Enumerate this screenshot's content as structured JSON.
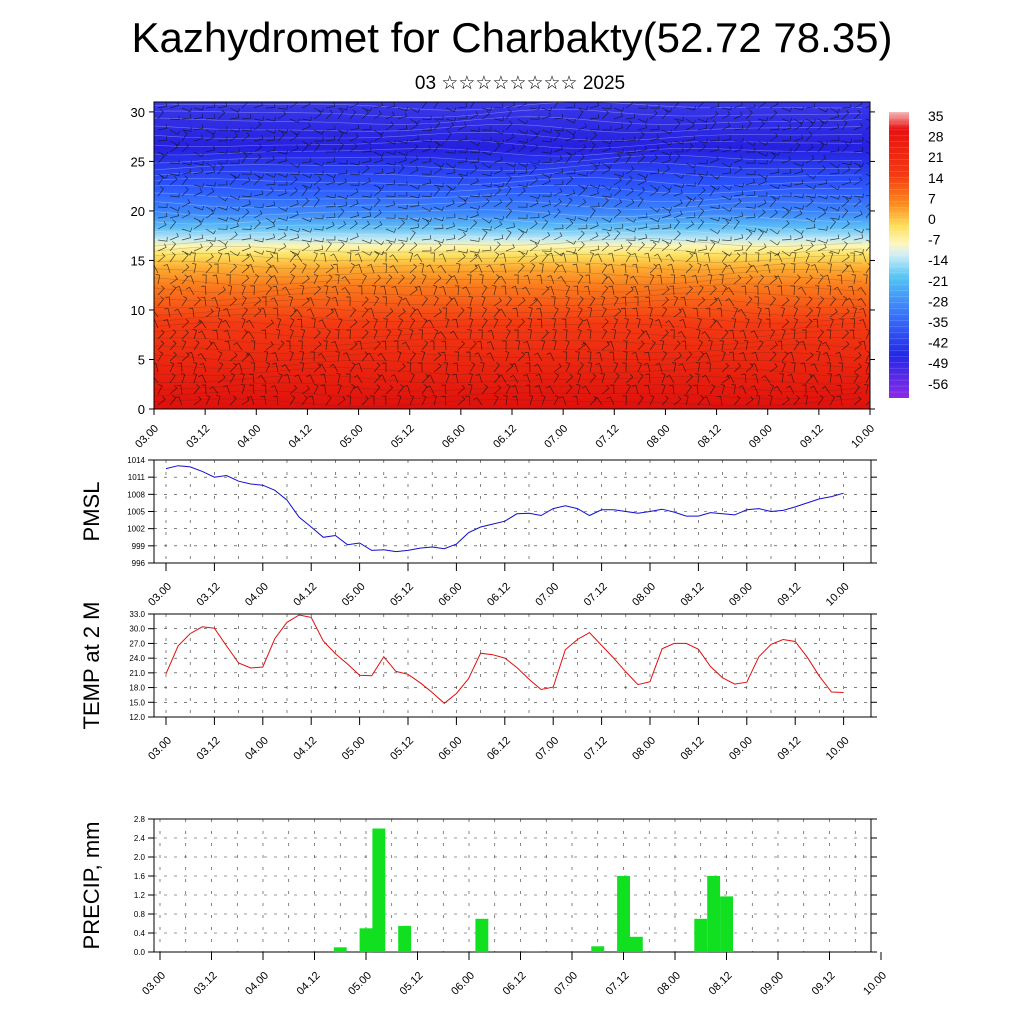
{
  "header": {
    "title": "Kazhydromet for Charbakty(52.72 78.35)",
    "subtitle": "03 ☆☆☆☆☆☆☆☆ 2025"
  },
  "time_ticks": [
    "03.00",
    "03.12",
    "04.00",
    "04.12",
    "05.00",
    "05.12",
    "06.00",
    "06.12",
    "07.00",
    "07.12",
    "08.00",
    "08.12",
    "09.00",
    "09.12",
    "10.00"
  ],
  "chart_data": [
    {
      "id": "cross_section",
      "type": "heatmap",
      "description_units": "temperature by height with wind barbs",
      "x_ticks_ref": "time_ticks",
      "y_ticks": [
        0,
        5,
        10,
        15,
        20,
        25,
        30
      ],
      "ylim": [
        0,
        31
      ],
      "colorbar_labels": [
        "35",
        "28",
        "21",
        "14",
        "7",
        "0",
        "-7",
        "-14",
        "-21",
        "-28",
        "-35",
        "-42",
        "-49",
        "-56"
      ],
      "colorbar_range": [
        -60,
        40
      ],
      "colors": {
        "hot": "#e8170f",
        "warm": "#fb8a1e",
        "mild": "#fde460",
        "cool": "#bfe8f2",
        "cold": "#2a60ff",
        "frigid": "#2a1fe0"
      }
    },
    {
      "id": "pmsl",
      "type": "line",
      "ylabel": "PMSL",
      "y_ticks": [
        "1014",
        "1011",
        "1008",
        "1005",
        "1002",
        "999",
        "996"
      ],
      "ylim": [
        996,
        1014
      ],
      "color": "#1010d0",
      "x": [
        0,
        3,
        6,
        9,
        12,
        15,
        18,
        21,
        24,
        27,
        30,
        33,
        36,
        39,
        42,
        45,
        48,
        51,
        54,
        57,
        60,
        63,
        66,
        69,
        72,
        75,
        78,
        81,
        84,
        87,
        90,
        93,
        96,
        99,
        102,
        105,
        108,
        111,
        114,
        117,
        120,
        123,
        126,
        129,
        132,
        135,
        138,
        141,
        144,
        147,
        150,
        153,
        156,
        159,
        162,
        165,
        168
      ],
      "values": [
        1012.5,
        1013.0,
        1012.8,
        1012.0,
        1011.0,
        1011.3,
        1010.3,
        1009.8,
        1009.6,
        1008.7,
        1007.0,
        1004.0,
        1002.3,
        1000.5,
        1000.8,
        999.2,
        999.5,
        998.2,
        998.3,
        998.0,
        998.2,
        998.6,
        998.8,
        998.5,
        999.3,
        1001.3,
        1002.3,
        1002.8,
        1003.3,
        1004.6,
        1004.7,
        1004.3,
        1005.5,
        1006.0,
        1005.5,
        1004.3,
        1005.3,
        1005.3,
        1005.0,
        1004.7,
        1005.0,
        1005.4,
        1004.9,
        1004.2,
        1004.2,
        1004.8,
        1004.6,
        1004.4,
        1005.3,
        1005.5,
        1005.0,
        1005.2,
        1005.8,
        1006.5,
        1007.2,
        1007.6,
        1008.2
      ]
    },
    {
      "id": "temp2m",
      "type": "line",
      "ylabel": "TEMP at 2 M",
      "y_ticks": [
        "33.0",
        "30.0",
        "27.0",
        "24.0",
        "21.0",
        "18.0",
        "15.0",
        "12.0"
      ],
      "ylim": [
        12,
        33
      ],
      "color": "#e01010",
      "x": [
        0,
        3,
        6,
        9,
        12,
        15,
        18,
        21,
        24,
        27,
        30,
        33,
        36,
        39,
        42,
        45,
        48,
        51,
        54,
        57,
        60,
        63,
        66,
        69,
        72,
        75,
        78,
        81,
        84,
        87,
        90,
        93,
        96,
        99,
        102,
        105,
        108,
        111,
        114,
        117,
        120,
        123,
        126,
        129,
        132,
        135,
        138,
        141,
        144,
        147,
        150,
        153,
        156,
        159,
        162,
        165,
        168
      ],
      "values": [
        20.8,
        26.5,
        29.0,
        30.4,
        30.1,
        26.5,
        23.0,
        22.0,
        22.2,
        28.0,
        31.3,
        32.8,
        32.3,
        27.5,
        24.9,
        22.8,
        20.5,
        20.4,
        24.3,
        21.3,
        20.7,
        19.0,
        17.0,
        14.8,
        16.8,
        19.8,
        25.0,
        24.7,
        24.0,
        22.1,
        19.7,
        17.6,
        18.1,
        25.7,
        27.8,
        29.2,
        26.6,
        24.0,
        21.2,
        18.6,
        19.2,
        25.9,
        27.0,
        27.0,
        25.8,
        22.3,
        20.0,
        18.7,
        19.1,
        24.3,
        26.8,
        27.8,
        27.4,
        24.2,
        20.3,
        17.1,
        17.0
      ]
    },
    {
      "id": "precip",
      "type": "bar",
      "ylabel": "PRECIP, mm",
      "y_ticks": [
        "2.8",
        "2.4",
        "2.0",
        "1.6",
        "1.2",
        "0.8",
        "0.4",
        "0.0"
      ],
      "ylim": [
        0,
        2.8
      ],
      "color": "#10e020",
      "x_hours": [
        42,
        48,
        51,
        54,
        57,
        75,
        87,
        102,
        108,
        111,
        126,
        129,
        132
      ],
      "values": [
        0.1,
        0.5,
        2.6,
        0.02,
        0.55,
        0.7,
        0.02,
        0.12,
        1.6,
        0.32,
        0.7,
        1.6,
        1.17
      ]
    }
  ]
}
